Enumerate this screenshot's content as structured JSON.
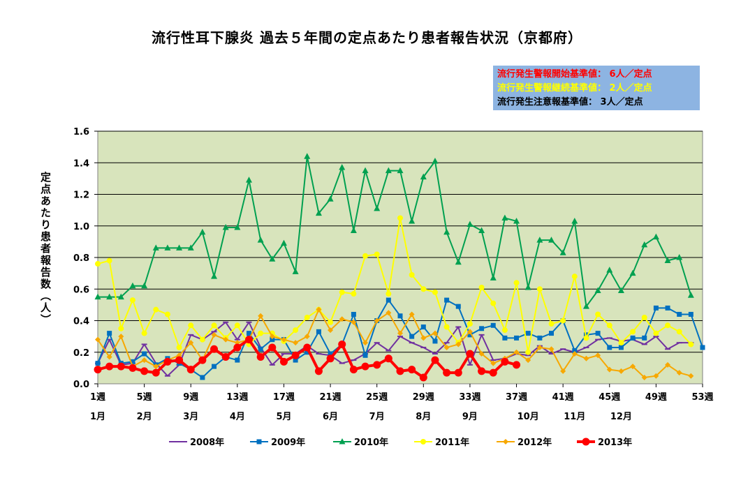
{
  "title": "流行性耳下腺炎 過去５年間の定点あたり患者報告状況（京都府）",
  "notes": [
    {
      "text": "流行発生警報開始基準値： 6人／定点",
      "color": "#ff0000"
    },
    {
      "text": "流行発生警報継続基準値： 2人／定点",
      "color": "#ffff00"
    },
    {
      "text": "流行発生注意報基準値： 3人／定点",
      "color": "#000000"
    }
  ],
  "chart_data": {
    "type": "line",
    "title": "流行性耳下腺炎 過去５年間の定点あたり患者報告状況（京都府）",
    "ylabel": "定点あたり患者報告数（人）",
    "xlabel": "",
    "ylim": [
      0,
      1.6
    ],
    "yticks": [
      0.0,
      0.2,
      0.4,
      0.6,
      0.8,
      1.0,
      1.2,
      1.4,
      1.6
    ],
    "ytick_labels": [
      "0.0",
      "0.2",
      "0.4",
      "0.6",
      "0.8",
      "1.0",
      "1.2",
      "1.4",
      "1.6"
    ],
    "x_range": [
      1,
      53
    ],
    "week_ticks": [
      {
        "week": 1,
        "label": "1週"
      },
      {
        "week": 5,
        "label": "5週"
      },
      {
        "week": 9,
        "label": "9週"
      },
      {
        "week": 13,
        "label": "13週"
      },
      {
        "week": 17,
        "label": "17週"
      },
      {
        "week": 21,
        "label": "21週"
      },
      {
        "week": 25,
        "label": "25週"
      },
      {
        "week": 29,
        "label": "29週"
      },
      {
        "week": 33,
        "label": "33週"
      },
      {
        "week": 37,
        "label": "37週"
      },
      {
        "week": 41,
        "label": "41週"
      },
      {
        "week": 45,
        "label": "45週"
      },
      {
        "week": 49,
        "label": "49週"
      },
      {
        "week": 53,
        "label": "53週"
      }
    ],
    "month_labels": [
      {
        "week": 1,
        "label": "1月"
      },
      {
        "week": 5,
        "label": "2月"
      },
      {
        "week": 9,
        "label": "3月"
      },
      {
        "week": 13,
        "label": "4月"
      },
      {
        "week": 17,
        "label": "5月"
      },
      {
        "week": 21,
        "label": "6月"
      },
      {
        "week": 25,
        "label": "7月"
      },
      {
        "week": 29,
        "label": "8月"
      },
      {
        "week": 33,
        "label": "9月"
      },
      {
        "week": 38,
        "label": "10月"
      },
      {
        "week": 42,
        "label": "11月"
      },
      {
        "week": 46,
        "label": "12月"
      }
    ],
    "grid": true,
    "legend": "bottom",
    "plot_background": "#d8e4bc",
    "series": [
      {
        "name": "2008年",
        "color": "#7030a0",
        "marker": "dash",
        "start_week": 1,
        "values": [
          0.13,
          0.28,
          0.12,
          0.13,
          0.25,
          0.13,
          0.05,
          0.12,
          0.31,
          0.28,
          0.33,
          0.39,
          0.28,
          0.39,
          0.23,
          0.12,
          0.19,
          0.19,
          0.24,
          0.19,
          0.18,
          0.13,
          0.15,
          0.19,
          0.26,
          0.21,
          0.3,
          0.26,
          0.23,
          0.19,
          0.26,
          0.36,
          0.12,
          0.31,
          0.15,
          0.16,
          0.19,
          0.18,
          0.24,
          0.19,
          0.22,
          0.2,
          0.23,
          0.28,
          0.29,
          0.27,
          0.28,
          0.25,
          0.3,
          0.22,
          0.26,
          0.26
        ]
      },
      {
        "name": "2009年",
        "color": "#0070c0",
        "marker": "square",
        "start_week": 1,
        "values": [
          0.13,
          0.32,
          0.13,
          0.14,
          0.19,
          0.12,
          0.16,
          0.13,
          0.09,
          0.04,
          0.11,
          0.17,
          0.15,
          0.32,
          0.22,
          0.28,
          0.28,
          0.15,
          0.2,
          0.33,
          0.19,
          0.25,
          0.44,
          0.18,
          0.4,
          0.53,
          0.43,
          0.3,
          0.36,
          0.27,
          0.53,
          0.49,
          0.31,
          0.35,
          0.37,
          0.29,
          0.29,
          0.32,
          0.29,
          0.32,
          0.4,
          0.21,
          0.31,
          0.32,
          0.23,
          0.23,
          0.29,
          0.29,
          0.48,
          0.48,
          0.44,
          0.44,
          0.23
        ]
      },
      {
        "name": "2010年",
        "color": "#00a050",
        "marker": "triangle",
        "start_week": 1,
        "values": [
          0.55,
          0.55,
          0.55,
          0.62,
          0.62,
          0.86,
          0.86,
          0.86,
          0.86,
          0.96,
          0.68,
          0.99,
          0.99,
          1.29,
          0.91,
          0.79,
          0.89,
          0.71,
          1.44,
          1.08,
          1.17,
          1.37,
          0.97,
          1.35,
          1.11,
          1.35,
          1.35,
          1.03,
          1.31,
          1.41,
          0.96,
          0.77,
          1.01,
          0.97,
          0.67,
          1.05,
          1.03,
          0.61,
          0.91,
          0.91,
          0.83,
          1.03,
          0.49,
          0.59,
          0.72,
          0.59,
          0.7,
          0.88,
          0.93,
          0.78,
          0.8,
          0.56
        ]
      },
      {
        "name": "2011年",
        "color": "#ffff00",
        "marker": "circle",
        "start_week": 1,
        "values": [
          0.76,
          0.78,
          0.35,
          0.53,
          0.32,
          0.47,
          0.44,
          0.23,
          0.37,
          0.28,
          0.37,
          0.29,
          0.37,
          0.25,
          0.32,
          0.32,
          0.27,
          0.34,
          0.42,
          0.47,
          0.39,
          0.58,
          0.57,
          0.81,
          0.82,
          0.57,
          1.05,
          0.69,
          0.6,
          0.58,
          0.36,
          0.26,
          0.38,
          0.61,
          0.51,
          0.34,
          0.64,
          0.2,
          0.6,
          0.38,
          0.4,
          0.68,
          0.29,
          0.44,
          0.37,
          0.26,
          0.33,
          0.42,
          0.32,
          0.37,
          0.33,
          0.25
        ]
      },
      {
        "name": "2012年",
        "color": "#f7a800",
        "marker": "diamond",
        "start_week": 1,
        "values": [
          0.28,
          0.17,
          0.3,
          0.11,
          0.15,
          0.11,
          0.15,
          0.18,
          0.26,
          0.15,
          0.31,
          0.28,
          0.26,
          0.28,
          0.43,
          0.3,
          0.28,
          0.26,
          0.3,
          0.47,
          0.34,
          0.41,
          0.39,
          0.26,
          0.4,
          0.45,
          0.32,
          0.44,
          0.29,
          0.32,
          0.23,
          0.25,
          0.33,
          0.19,
          0.13,
          0.16,
          0.2,
          0.15,
          0.23,
          0.22,
          0.08,
          0.19,
          0.16,
          0.18,
          0.09,
          0.08,
          0.11,
          0.04,
          0.05,
          0.12,
          0.07,
          0.05
        ]
      },
      {
        "name": "2013年",
        "color": "#ff0000",
        "marker": "bigcircle",
        "start_week": 1,
        "values": [
          0.09,
          0.11,
          0.11,
          0.1,
          0.08,
          0.07,
          0.14,
          0.15,
          0.09,
          0.15,
          0.22,
          0.17,
          0.23,
          0.28,
          0.17,
          0.23,
          0.14,
          0.18,
          0.23,
          0.08,
          0.16,
          0.25,
          0.09,
          0.11,
          0.12,
          0.16,
          0.08,
          0.09,
          0.04,
          0.15,
          0.07,
          0.07,
          0.19,
          0.08,
          0.07,
          0.14,
          0.12
        ]
      }
    ]
  }
}
